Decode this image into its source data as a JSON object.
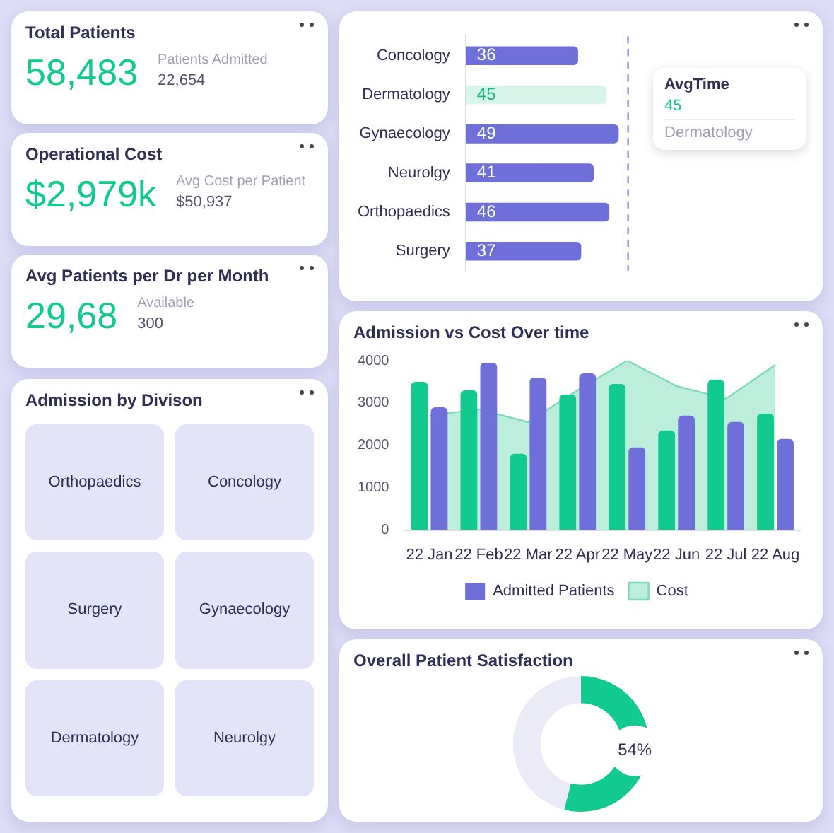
{
  "chart_data": [
    {
      "type": "other",
      "title": "Total Patients",
      "annotations": [
        "58,483",
        "Patients Admitted",
        "22,654"
      ]
    },
    {
      "type": "other",
      "title": "Operational Cost",
      "annotations": [
        "$2,979k",
        "Avg Cost per Patient",
        "$50,937"
      ]
    },
    {
      "type": "other",
      "title": "Avg Patients per Dr per Month",
      "annotations": [
        "29,68",
        "Available",
        "300"
      ]
    },
    {
      "type": "bar",
      "orientation": "horizontal",
      "categories": [
        "Concology",
        "Dermatology",
        "Gynaecology",
        "Neurolgy",
        "Orthopaedics",
        "Surgery"
      ],
      "values": [
        36,
        45,
        49,
        41,
        46,
        37
      ],
      "colors": [
        "#6e6fd8",
        "#d8f5ea",
        "#6e6fd8",
        "#6e6fd8",
        "#6e6fd8",
        "#6e6fd8"
      ],
      "data_labels": true,
      "ref_lines": [
        {
          "axis": "x",
          "value": 52,
          "color": "#8f90e0",
          "line_style": "dashed"
        }
      ],
      "annotations": [
        "AvgTime",
        "45",
        "Dermatology"
      ]
    },
    {
      "type": "other",
      "title": "Admission by Divison",
      "categories": [
        "Orthopaedics",
        "Concology",
        "Surgery",
        "Gynaecology",
        "Dermatology",
        "Neurolgy"
      ]
    },
    {
      "type": "bar",
      "title": "Admission vs Cost Over time",
      "categories": [
        "22 Jan",
        "22 Feb",
        "22 Mar",
        "22 Apr",
        "22 May",
        "22 Jun",
        "22 Jul",
        "22 Aug"
      ],
      "ylim": [
        0,
        4000
      ],
      "yticks": [
        0,
        1000,
        2000,
        3000,
        4000
      ],
      "legend": "bottom",
      "series": [
        {
          "name": "Cost",
          "type": "area",
          "color": "#bdeedc",
          "values": [
            2700,
            2850,
            2550,
            3300,
            4000,
            3400,
            3100,
            3900
          ]
        },
        {
          "color": "#12c98f",
          "values": [
            3500,
            3300,
            1800,
            3200,
            3450,
            2350,
            3550,
            2750
          ]
        },
        {
          "name": "Admitted Patients",
          "color": "#6e6fd8",
          "values": [
            2900,
            3950,
            3600,
            3700,
            1950,
            2700,
            2550,
            2150
          ]
        }
      ]
    },
    {
      "type": "donut",
      "title": "Overall Patient Satisfaction",
      "categories": [
        null,
        null
      ],
      "values": [
        54,
        46
      ],
      "colors": [
        "#12c98f",
        "#ebebf7"
      ],
      "value_labels": [
        "54%",
        null
      ]
    }
  ]
}
